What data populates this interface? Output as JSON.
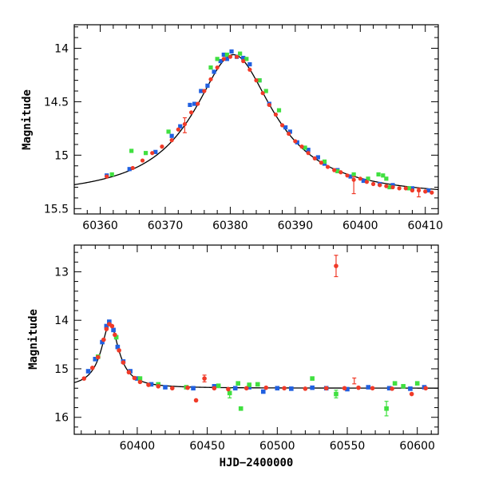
{
  "chart_data": [
    {
      "type": "scatter",
      "title": "",
      "xlabel": "",
      "ylabel": "Magnitude",
      "xlim": [
        60356,
        60412
      ],
      "ylim": [
        15.55,
        13.78
      ],
      "y_inverted": true,
      "grid": false,
      "legend": "none",
      "xticks": [
        60360,
        60370,
        60380,
        60390,
        60400,
        60410
      ],
      "yticks": [
        14,
        14.5,
        15,
        15.5
      ],
      "model_curve": {
        "color": "#000000",
        "peak_x": 60380.5,
        "peak_mag": 14.06,
        "baseline_mag": 15.4,
        "width_days": 5.6
      },
      "series": [
        {
          "color": "#2060e0",
          "points": [
            [
              60361.0,
              15.19
            ],
            [
              60364.5,
              15.13
            ],
            [
              60368.5,
              14.97
            ],
            [
              60371.0,
              14.82
            ],
            [
              60372.3,
              14.73
            ],
            [
              60373.8,
              14.53
            ],
            [
              60374.5,
              14.52
            ],
            [
              60375.5,
              14.4
            ],
            [
              60376.5,
              14.35
            ],
            [
              60377.5,
              14.22
            ],
            [
              60378.5,
              14.12
            ],
            [
              60379.0,
              14.06
            ],
            [
              60379.5,
              14.1
            ],
            [
              60380.2,
              14.03
            ],
            [
              60381.0,
              14.08
            ],
            [
              60382.0,
              14.09
            ],
            [
              60383.0,
              14.15
            ],
            [
              60384.5,
              14.3
            ],
            [
              60386.0,
              14.52
            ],
            [
              60388.5,
              14.74
            ],
            [
              60389.2,
              14.78
            ],
            [
              60390.3,
              14.88
            ],
            [
              60392.0,
              14.95
            ],
            [
              60393.5,
              15.02
            ],
            [
              60394.5,
              15.08
            ],
            [
              60396.5,
              15.14
            ],
            [
              60398.5,
              15.2
            ],
            [
              60400.5,
              15.24
            ],
            [
              60403.0,
              15.27
            ],
            [
              60405.0,
              15.28
            ],
            [
              60408.0,
              15.31
            ],
            [
              60410.5,
              15.33
            ]
          ]
        },
        {
          "color": "#40e040",
          "points": [
            [
              60361.8,
              15.18
            ],
            [
              60364.8,
              14.96
            ],
            [
              60367.0,
              14.98
            ],
            [
              60370.5,
              14.78
            ],
            [
              60377.0,
              14.18
            ],
            [
              60378.0,
              14.1
            ],
            [
              60379.5,
              14.06
            ],
            [
              60381.5,
              14.05
            ],
            [
              60382.5,
              14.1
            ],
            [
              60384.5,
              14.3
            ],
            [
              60385.5,
              14.4
            ],
            [
              60387.5,
              14.58
            ],
            [
              60391.5,
              14.93
            ],
            [
              60394.5,
              15.06
            ],
            [
              60396.5,
              15.15
            ],
            [
              60399.0,
              15.18
            ],
            [
              60401.2,
              15.22
            ],
            [
              60402.8,
              15.18
            ],
            [
              60403.5,
              15.19
            ],
            [
              60404.0,
              15.22
            ],
            [
              60404.5,
              15.3
            ],
            [
              60407.5,
              15.31
            ]
          ]
        },
        {
          "color": "#f03a28",
          "points": [
            [
              60361.0,
              15.2
            ],
            [
              60365.0,
              15.12
            ],
            [
              60366.5,
              15.05
            ],
            [
              60368.0,
              14.98
            ],
            [
              60369.5,
              14.92
            ],
            [
              60371.0,
              14.86
            ],
            [
              60372.0,
              14.76
            ],
            [
              60373.0,
              14.71
            ],
            [
              60374.0,
              14.6
            ],
            [
              60375.0,
              14.52
            ],
            [
              60376.0,
              14.4
            ],
            [
              60377.0,
              14.29
            ],
            [
              60378.0,
              14.18
            ],
            [
              60379.0,
              14.1
            ],
            [
              60380.0,
              14.08
            ],
            [
              60381.0,
              14.08
            ],
            [
              60382.0,
              14.12
            ],
            [
              60383.0,
              14.2
            ],
            [
              60384.0,
              14.3
            ],
            [
              60385.0,
              14.42
            ],
            [
              60386.0,
              14.53
            ],
            [
              60387.0,
              14.62
            ],
            [
              60388.0,
              14.72
            ],
            [
              60389.0,
              14.8
            ],
            [
              60390.0,
              14.87
            ],
            [
              60391.0,
              14.92
            ],
            [
              60392.0,
              14.98
            ],
            [
              60393.0,
              15.03
            ],
            [
              60394.0,
              15.07
            ],
            [
              60395.0,
              15.11
            ],
            [
              60396.0,
              15.14
            ],
            [
              60397.0,
              15.16
            ],
            [
              60398.0,
              15.19
            ],
            [
              60399.0,
              15.23
            ],
            [
              60400.0,
              15.22
            ],
            [
              60401.0,
              15.25
            ],
            [
              60402.0,
              15.27
            ],
            [
              60403.0,
              15.28
            ],
            [
              60404.0,
              15.29
            ],
            [
              60405.0,
              15.3
            ],
            [
              60406.0,
              15.31
            ],
            [
              60407.0,
              15.31
            ],
            [
              60408.0,
              15.33
            ],
            [
              60409.0,
              15.33
            ],
            [
              60410.0,
              15.34
            ],
            [
              60411.0,
              15.35
            ]
          ],
          "errorbars": [
            [
              60373.0,
              14.72,
              0.07
            ],
            [
              60399.0,
              15.28,
              0.08
            ],
            [
              60409.0,
              15.35,
              0.04
            ]
          ]
        }
      ]
    },
    {
      "type": "scatter",
      "title": "",
      "xlabel": "HJD−2400000",
      "ylabel": "Magnitude",
      "xlim": [
        60355,
        60615
      ],
      "ylim": [
        16.35,
        12.45
      ],
      "y_inverted": true,
      "grid": false,
      "legend": "none",
      "xticks": [
        60400,
        60450,
        60500,
        60550,
        60600
      ],
      "yticks": [
        13,
        14,
        15,
        16
      ],
      "model_curve": {
        "color": "#000000",
        "peak_x": 60380.5,
        "peak_mag": 14.06,
        "baseline_mag": 15.4,
        "width_days": 5.6
      },
      "series": [
        {
          "color": "#2060e0",
          "points": [
            [
              60365,
              15.05
            ],
            [
              60370,
              14.8
            ],
            [
              60375,
              14.45
            ],
            [
              60378,
              14.12
            ],
            [
              60380,
              14.03
            ],
            [
              60383,
              14.2
            ],
            [
              60386,
              14.55
            ],
            [
              60390,
              14.85
            ],
            [
              60395,
              15.05
            ],
            [
              60400,
              15.2
            ],
            [
              60410,
              15.32
            ],
            [
              60420,
              15.38
            ],
            [
              60440,
              15.4
            ],
            [
              60455,
              15.36
            ],
            [
              60470,
              15.4
            ],
            [
              60480,
              15.38
            ],
            [
              60490,
              15.47
            ],
            [
              60500,
              15.4
            ],
            [
              60510,
              15.41
            ],
            [
              60525,
              15.39
            ],
            [
              60535,
              15.4
            ],
            [
              60550,
              15.42
            ],
            [
              60565,
              15.38
            ],
            [
              60580,
              15.4
            ],
            [
              60595,
              15.41
            ],
            [
              60605,
              15.38
            ]
          ]
        },
        {
          "color": "#40e040",
          "points": [
            [
              60372,
              14.75
            ],
            [
              60385,
              14.35
            ],
            [
              60402,
              15.2
            ],
            [
              60415,
              15.32
            ],
            [
              60435,
              15.38
            ],
            [
              60458,
              15.35
            ],
            [
              60466,
              15.5
            ],
            [
              60472,
              15.3
            ],
            [
              60474,
              15.82
            ],
            [
              60480,
              15.33
            ],
            [
              60486,
              15.32
            ],
            [
              60525,
              15.2
            ],
            [
              60542,
              15.52
            ],
            [
              60578,
              15.82
            ],
            [
              60584,
              15.3
            ],
            [
              60590,
              15.36
            ],
            [
              60600,
              15.3
            ]
          ],
          "errorbars": [
            [
              60466,
              15.5,
              0.1
            ],
            [
              60542,
              15.52,
              0.08
            ],
            [
              60578,
              15.82,
              0.15
            ]
          ]
        },
        {
          "color": "#f03a28",
          "points": [
            [
              60362,
              15.2
            ],
            [
              60368,
              14.98
            ],
            [
              60372,
              14.76
            ],
            [
              60376,
              14.4
            ],
            [
              60378,
              14.18
            ],
            [
              60380,
              14.08
            ],
            [
              60382,
              14.12
            ],
            [
              60384,
              14.3
            ],
            [
              60387,
              14.62
            ],
            [
              60390,
              14.87
            ],
            [
              60394,
              15.07
            ],
            [
              60398,
              15.19
            ],
            [
              60402,
              15.27
            ],
            [
              60408,
              15.33
            ],
            [
              60415,
              15.36
            ],
            [
              60425,
              15.4
            ],
            [
              60436,
              15.39
            ],
            [
              60442,
              15.65
            ],
            [
              60448,
              15.2
            ],
            [
              60455,
              15.4
            ],
            [
              60465,
              15.42
            ],
            [
              60478,
              15.4
            ],
            [
              60492,
              15.39
            ],
            [
              60505,
              15.4
            ],
            [
              60520,
              15.41
            ],
            [
              60535,
              15.4
            ],
            [
              60542,
              12.88
            ],
            [
              60548,
              15.4
            ],
            [
              60558,
              15.39
            ],
            [
              60568,
              15.4
            ],
            [
              60582,
              15.41
            ],
            [
              60596,
              15.52
            ],
            [
              60606,
              15.4
            ]
          ],
          "errorbars": [
            [
              60448,
              15.2,
              0.07
            ],
            [
              60542,
              12.88,
              0.22
            ],
            [
              60555,
              15.25,
              0.06
            ]
          ]
        }
      ]
    }
  ]
}
